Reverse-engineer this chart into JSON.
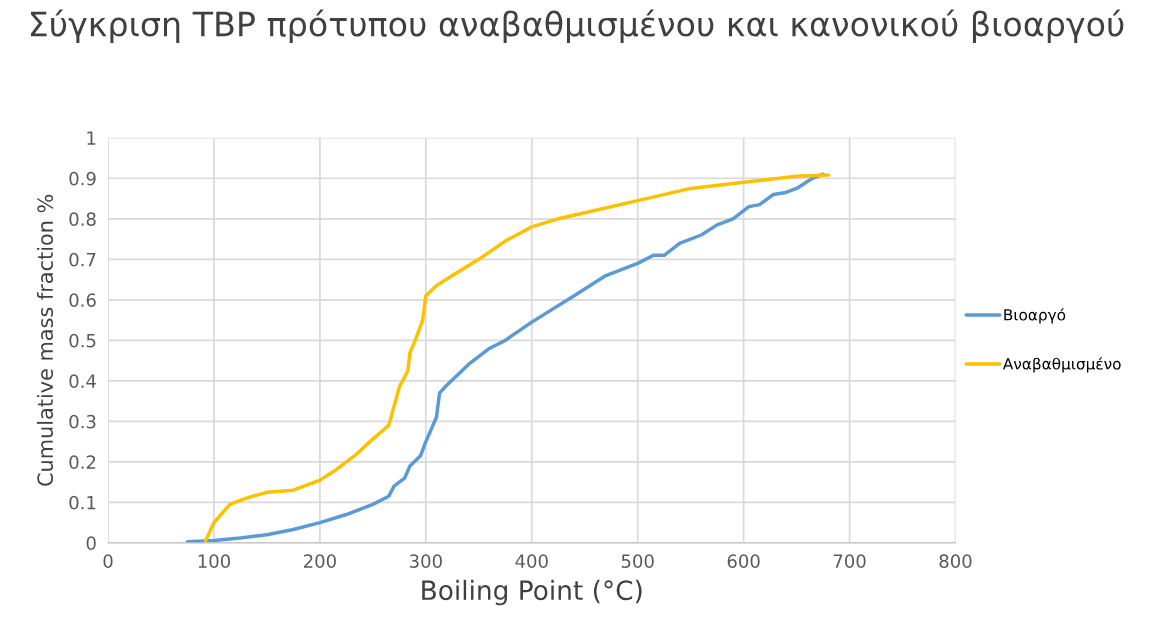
{
  "chart_data": {
    "type": "line",
    "title": "Σύγκριση TBP πρότυπου αναβαθμισμένου και κανονικού βιοαργού",
    "xlabel": "Boiling Point (°C)",
    "ylabel": "Cumulative mass fraction %",
    "xlim": [
      0,
      800
    ],
    "xticks": [
      0,
      100,
      200,
      300,
      400,
      500,
      600,
      700,
      800
    ],
    "ylim": [
      0,
      1
    ],
    "yticks": [
      0,
      0.1,
      0.2,
      0.3,
      0.4,
      0.5,
      0.6,
      0.7,
      0.8,
      0.9,
      1
    ],
    "grid": true,
    "legend": "right",
    "marker": "none",
    "line_style": "solid",
    "series": [
      {
        "name": "Βιοαργό",
        "color": "#5b9bd5",
        "x": [
          75,
          100,
          125,
          150,
          175,
          200,
          225,
          250,
          265,
          270,
          280,
          285,
          295,
          300,
          305,
          310,
          313,
          320,
          340,
          360,
          375,
          400,
          440,
          470,
          500,
          515,
          525,
          540,
          560,
          575,
          590,
          605,
          615,
          628,
          640,
          650,
          665,
          675
        ],
        "values": [
          0.003,
          0.006,
          0.012,
          0.02,
          0.033,
          0.05,
          0.07,
          0.095,
          0.115,
          0.14,
          0.16,
          0.19,
          0.215,
          0.25,
          0.28,
          0.31,
          0.37,
          0.39,
          0.44,
          0.48,
          0.5,
          0.545,
          0.61,
          0.66,
          0.69,
          0.71,
          0.71,
          0.74,
          0.76,
          0.785,
          0.8,
          0.83,
          0.835,
          0.86,
          0.865,
          0.875,
          0.9,
          0.91
        ]
      },
      {
        "name": "Αναβαθμισμένο",
        "color": "#ffc000",
        "x": [
          92,
          100,
          115,
          130,
          150,
          175,
          200,
          215,
          235,
          245,
          265,
          275,
          283,
          285,
          290,
          297,
          300,
          310,
          325,
          350,
          375,
          400,
          425,
          450,
          500,
          550,
          600,
          650,
          680
        ],
        "values": [
          0.005,
          0.05,
          0.095,
          0.11,
          0.125,
          0.13,
          0.155,
          0.18,
          0.22,
          0.245,
          0.29,
          0.385,
          0.425,
          0.47,
          0.5,
          0.55,
          0.61,
          0.635,
          0.66,
          0.7,
          0.745,
          0.78,
          0.8,
          0.815,
          0.845,
          0.875,
          0.89,
          0.905,
          0.908
        ]
      }
    ]
  }
}
